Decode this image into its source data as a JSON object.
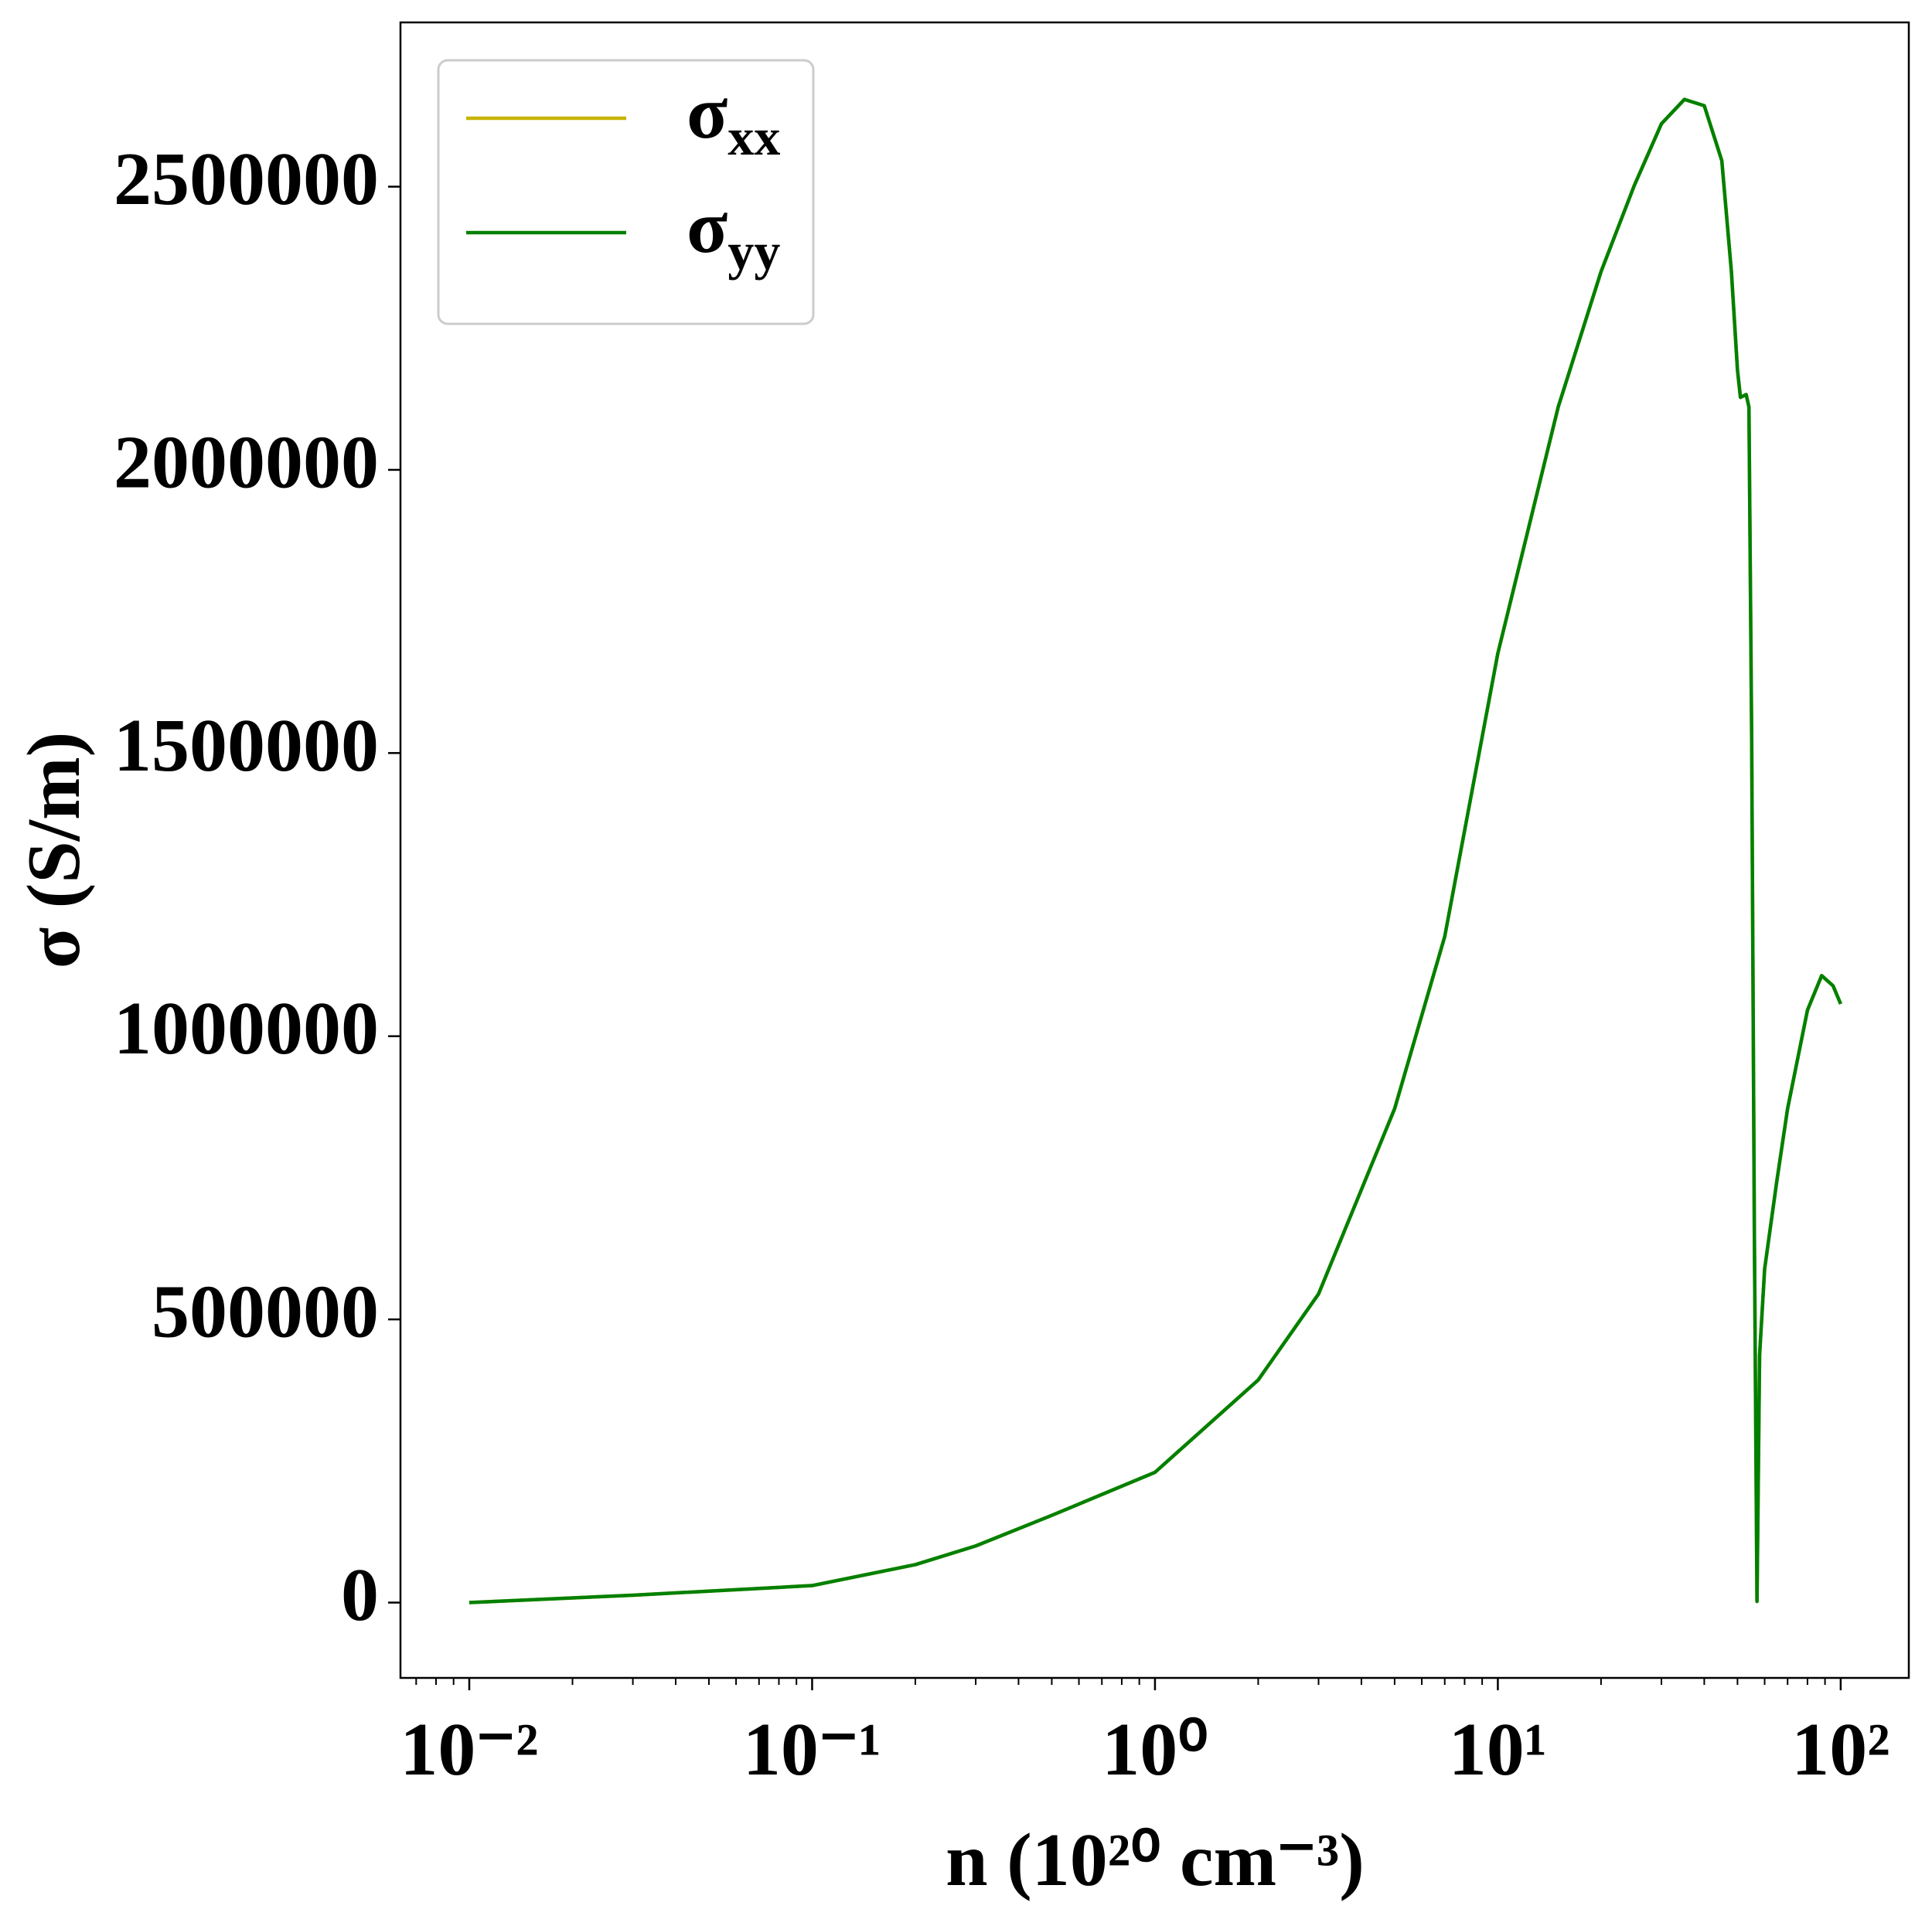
{
  "chart_data": {
    "type": "line",
    "xlabel": "n (10²⁰ cm⁻³)",
    "ylabel": "σ (S/m)",
    "xscale": "log",
    "xlim": [
      0.0063,
      158
    ],
    "ylim": [
      -133000,
      2790000
    ],
    "xticks": [
      {
        "value": 0.01,
        "label": "10⁻²"
      },
      {
        "value": 0.1,
        "label": "10⁻¹"
      },
      {
        "value": 1,
        "label": "10⁰"
      },
      {
        "value": 10,
        "label": "10¹"
      },
      {
        "value": 100,
        "label": "10²"
      }
    ],
    "xticks_minor": [
      0.007,
      0.008,
      0.009,
      0.02,
      0.03,
      0.04,
      0.05,
      0.06,
      0.07,
      0.08,
      0.09,
      0.2,
      0.3,
      0.4,
      0.5,
      0.6,
      0.7,
      0.8,
      0.9,
      2,
      3,
      4,
      5,
      6,
      7,
      8,
      9,
      20,
      30,
      40,
      50,
      60,
      70,
      80,
      90
    ],
    "yticks": [
      0,
      500000,
      1000000,
      1500000,
      2000000,
      2500000
    ],
    "legend": "upper left",
    "grid": false,
    "x": [
      0.01,
      0.03,
      0.1,
      0.2,
      0.3,
      0.5,
      1,
      2,
      3,
      5,
      7,
      10,
      15,
      20,
      25,
      30,
      35,
      40,
      45,
      48,
      50,
      51,
      53,
      54,
      55,
      56,
      57,
      58,
      60,
      65,
      70,
      80,
      88,
      95,
      100
    ],
    "series": [
      {
        "name": "σxx",
        "color": "#c8b400",
        "values": [
          0,
          13000,
          30000,
          67000,
          100000,
          154000,
          230000,
          393000,
          545000,
          872000,
          1176000,
          1676000,
          2111000,
          2350000,
          2502000,
          2611000,
          2654000,
          2643000,
          2546000,
          2350000,
          2176000,
          2128000,
          2133000,
          2111000,
          1524000,
          654000,
          2000,
          437000,
          589000,
          741000,
          872000,
          1046000,
          1107000,
          1089000,
          1057000
        ]
      },
      {
        "name": "σyy",
        "color": "#008000",
        "values": [
          0,
          13000,
          30000,
          67000,
          100000,
          154000,
          230000,
          393000,
          545000,
          872000,
          1176000,
          1676000,
          2111000,
          2350000,
          2502000,
          2611000,
          2654000,
          2643000,
          2546000,
          2350000,
          2176000,
          2128000,
          2133000,
          2111000,
          1524000,
          654000,
          2000,
          437000,
          589000,
          741000,
          872000,
          1046000,
          1107000,
          1089000,
          1057000
        ]
      }
    ]
  }
}
